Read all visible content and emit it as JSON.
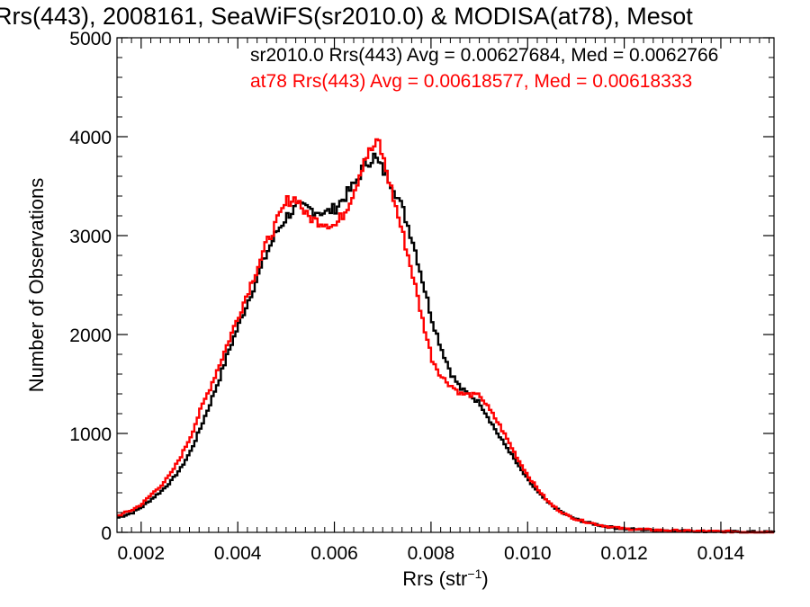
{
  "chart_data": {
    "type": "line",
    "title": "Rrs(443), 2008161, SeaWiFS(sr2010.0) & MODISA(at78), Mesot",
    "xlabel": "Rrs (str",
    "xlabel_sup": "−1",
    "xlabel_end": ")",
    "ylabel": "Number of Observations",
    "xlim": [
      0.0015,
      0.0151
    ],
    "ylim": [
      0,
      5000
    ],
    "x_ticks": [
      0.002,
      0.004,
      0.006,
      0.008,
      0.01,
      0.012,
      0.014
    ],
    "x_tick_labels": [
      "0.002",
      "0.004",
      "0.006",
      "0.008",
      "0.010",
      "0.012",
      "0.014"
    ],
    "y_ticks": [
      0,
      1000,
      2000,
      3000,
      4000,
      5000
    ],
    "y_tick_labels": [
      "0",
      "1000",
      "2000",
      "3000",
      "4000",
      "5000"
    ],
    "grid": false,
    "step_plot": true,
    "legend_placement": "top-right",
    "series": [
      {
        "name": "sr2010.0 Rrs(443) Avg = 0.00627684, Med = 0.0062766",
        "color": "#000000",
        "points": [
          [
            0.0015,
            150
          ],
          [
            0.0018,
            200
          ],
          [
            0.002,
            260
          ],
          [
            0.0022,
            340
          ],
          [
            0.0024,
            420
          ],
          [
            0.0026,
            520
          ],
          [
            0.0028,
            650
          ],
          [
            0.003,
            820
          ],
          [
            0.0032,
            1050
          ],
          [
            0.0034,
            1300
          ],
          [
            0.0036,
            1560
          ],
          [
            0.0038,
            1850
          ],
          [
            0.004,
            2100
          ],
          [
            0.0042,
            2350
          ],
          [
            0.0044,
            2600
          ],
          [
            0.0046,
            2850
          ],
          [
            0.0048,
            3050
          ],
          [
            0.005,
            3200
          ],
          [
            0.0052,
            3290
          ],
          [
            0.0054,
            3280
          ],
          [
            0.0056,
            3250
          ],
          [
            0.0058,
            3230
          ],
          [
            0.006,
            3280
          ],
          [
            0.0062,
            3400
          ],
          [
            0.0064,
            3520
          ],
          [
            0.0066,
            3720
          ],
          [
            0.0068,
            3800
          ],
          [
            0.0069,
            3720
          ],
          [
            0.007,
            3650
          ],
          [
            0.0072,
            3500
          ],
          [
            0.0074,
            3250
          ],
          [
            0.0076,
            2950
          ],
          [
            0.0078,
            2550
          ],
          [
            0.008,
            2150
          ],
          [
            0.0082,
            1850
          ],
          [
            0.0084,
            1600
          ],
          [
            0.0086,
            1450
          ],
          [
            0.0088,
            1380
          ],
          [
            0.009,
            1300
          ],
          [
            0.0092,
            1130
          ],
          [
            0.0094,
            960
          ],
          [
            0.0096,
            820
          ],
          [
            0.0098,
            660
          ],
          [
            0.01,
            520
          ],
          [
            0.0102,
            400
          ],
          [
            0.0104,
            300
          ],
          [
            0.0106,
            230
          ],
          [
            0.0108,
            170
          ],
          [
            0.011,
            130
          ],
          [
            0.0112,
            100
          ],
          [
            0.0114,
            80
          ],
          [
            0.0116,
            60
          ],
          [
            0.0118,
            45
          ],
          [
            0.012,
            35
          ],
          [
            0.0125,
            25
          ],
          [
            0.013,
            18
          ],
          [
            0.0135,
            12
          ],
          [
            0.014,
            8
          ],
          [
            0.0145,
            5
          ],
          [
            0.0151,
            3
          ]
        ]
      },
      {
        "name": "at78 Rrs(443) Avg = 0.00618577, Med = 0.00618333",
        "color": "#ff0000",
        "points": [
          [
            0.0015,
            170
          ],
          [
            0.0018,
            230
          ],
          [
            0.002,
            290
          ],
          [
            0.0022,
            390
          ],
          [
            0.0024,
            480
          ],
          [
            0.0026,
            600
          ],
          [
            0.0028,
            770
          ],
          [
            0.003,
            970
          ],
          [
            0.0032,
            1230
          ],
          [
            0.0034,
            1460
          ],
          [
            0.0036,
            1700
          ],
          [
            0.0038,
            1950
          ],
          [
            0.004,
            2200
          ],
          [
            0.0042,
            2450
          ],
          [
            0.0044,
            2700
          ],
          [
            0.0046,
            2950
          ],
          [
            0.0048,
            3150
          ],
          [
            0.005,
            3350
          ],
          [
            0.0052,
            3380
          ],
          [
            0.0054,
            3200
          ],
          [
            0.0056,
            3150
          ],
          [
            0.0058,
            3130
          ],
          [
            0.006,
            3100
          ],
          [
            0.0062,
            3250
          ],
          [
            0.0064,
            3480
          ],
          [
            0.0066,
            3780
          ],
          [
            0.0068,
            3900
          ],
          [
            0.0069,
            3940
          ],
          [
            0.007,
            3750
          ],
          [
            0.0072,
            3380
          ],
          [
            0.0074,
            3000
          ],
          [
            0.0076,
            2600
          ],
          [
            0.0078,
            2150
          ],
          [
            0.008,
            1750
          ],
          [
            0.0082,
            1570
          ],
          [
            0.0084,
            1480
          ],
          [
            0.0086,
            1400
          ],
          [
            0.0088,
            1390
          ],
          [
            0.009,
            1380
          ],
          [
            0.0092,
            1230
          ],
          [
            0.0094,
            1080
          ],
          [
            0.0096,
            900
          ],
          [
            0.0098,
            720
          ],
          [
            0.01,
            560
          ],
          [
            0.0102,
            430
          ],
          [
            0.0104,
            310
          ],
          [
            0.0106,
            230
          ],
          [
            0.0108,
            170
          ],
          [
            0.011,
            130
          ],
          [
            0.0112,
            105
          ],
          [
            0.0114,
            82
          ],
          [
            0.0116,
            62
          ],
          [
            0.0118,
            47
          ],
          [
            0.012,
            36
          ],
          [
            0.0125,
            26
          ],
          [
            0.013,
            18
          ],
          [
            0.0135,
            12
          ],
          [
            0.014,
            8
          ],
          [
            0.0145,
            5
          ],
          [
            0.0151,
            3
          ]
        ]
      }
    ]
  }
}
